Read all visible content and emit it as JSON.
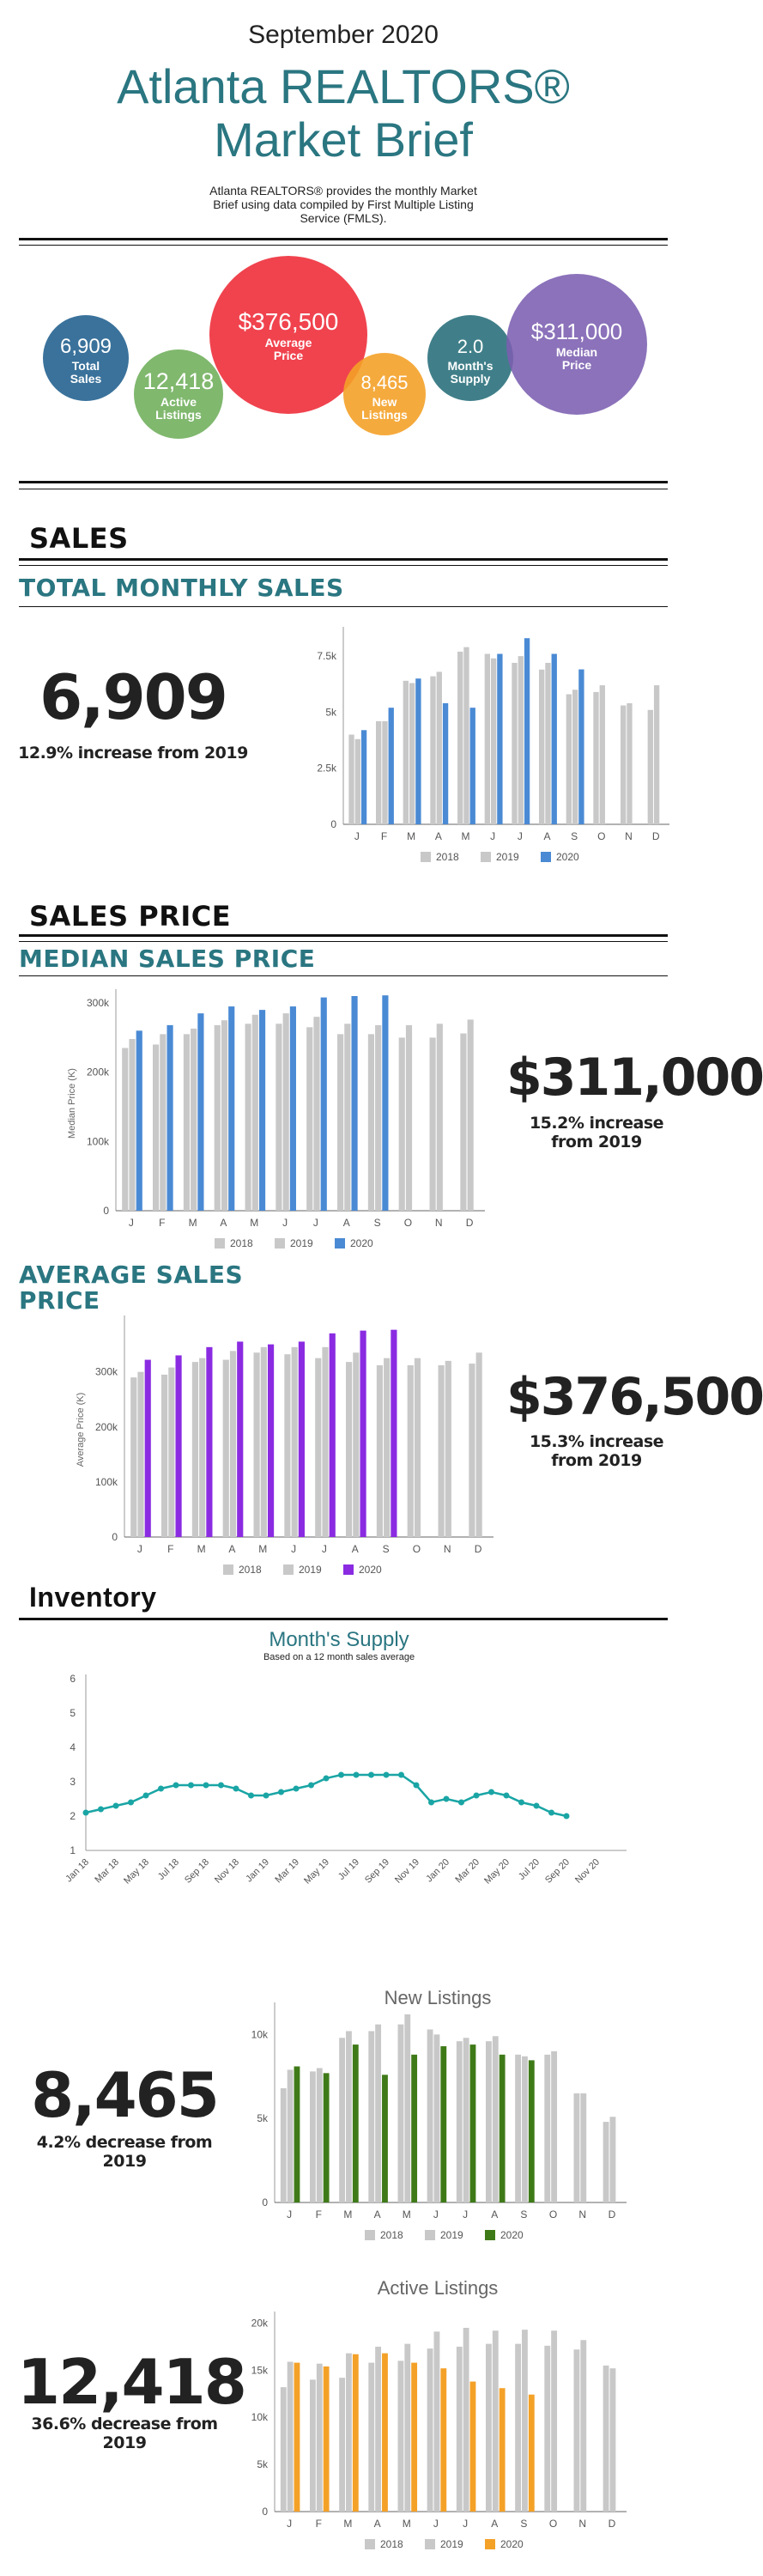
{
  "header": {
    "date": "September 2020",
    "title_line1": "Atlanta REALTORS®",
    "title_line2": "Market Brief",
    "description": "Atlanta REALTORS® provides the monthly Market Brief using data compiled by First Multiple Listing Service (FMLS)."
  },
  "bubbles": [
    {
      "value": "6,909",
      "label": "Total Sales",
      "color": "#2f6a96"
    },
    {
      "value": "12,418",
      "label": "Active Listings",
      "color": "#6aab55"
    },
    {
      "value": "$376,500",
      "label": "Average Price",
      "color": "#ee2f3b"
    },
    {
      "value": "8,465",
      "label": "New Listings",
      "color": "#f4a128"
    },
    {
      "value": "2.0",
      "label": "Month's Supply",
      "color": "#266d79"
    },
    {
      "value": "$311,000",
      "label": "Median Price",
      "color": "#7b5fb0"
    }
  ],
  "sections": {
    "sales": "SALES",
    "sales_price": "SALES PRICE",
    "inventory": "Inventory"
  },
  "total_sales": {
    "subtitle": "TOTAL MONTHLY SALES",
    "big": "6,909",
    "change": "12.9% increase from 2019"
  },
  "median_price": {
    "subtitle": "MEDIAN SALES PRICE",
    "big": "$311,000",
    "change": "15.2% increase from 2019"
  },
  "average_price": {
    "subtitle_line1": "AVERAGE SALES",
    "subtitle_line2": "PRICE",
    "big": "$376,500",
    "change": "15.3% increase from 2019"
  },
  "months_supply": {
    "title": "Month's Supply",
    "subtitle": "Based on a 12 month sales average"
  },
  "new_listings": {
    "title": "New Listings",
    "big": "8,465",
    "change": "4.2% decrease from 2019"
  },
  "active_listings": {
    "title": "Active Listings",
    "big": "12,418",
    "change": "36.6% decrease from 2019"
  },
  "chart_data": [
    {
      "id": "sales",
      "type": "bar",
      "categories": [
        "J",
        "F",
        "M",
        "A",
        "M",
        "J",
        "J",
        "A",
        "S",
        "O",
        "N",
        "D"
      ],
      "ylim": [
        0,
        8500
      ],
      "yticks": [
        0,
        2500,
        5000,
        7500
      ],
      "yticklabels": [
        "0",
        "2.5k",
        "5k",
        "7.5k"
      ],
      "ylabel": "",
      "series": [
        {
          "name": "2018",
          "color": "#c8c8c8",
          "values": [
            4000,
            4600,
            6400,
            6600,
            7700,
            7600,
            7200,
            6900,
            5800,
            5900,
            5300,
            5100
          ]
        },
        {
          "name": "2019",
          "color": "#c8c8c8",
          "values": [
            3800,
            4600,
            6300,
            6800,
            7900,
            7400,
            7500,
            7200,
            6000,
            6200,
            5400,
            6200
          ]
        },
        {
          "name": "2020",
          "color": "#4a8ad4",
          "values": [
            4200,
            5200,
            6500,
            5400,
            5200,
            7600,
            8300,
            7600,
            6909,
            null,
            null,
            null
          ]
        }
      ]
    },
    {
      "id": "median",
      "type": "bar",
      "categories": [
        "J",
        "F",
        "M",
        "A",
        "M",
        "J",
        "J",
        "A",
        "S",
        "O",
        "N",
        "D"
      ],
      "ylim": [
        0,
        310000
      ],
      "yticks": [
        0,
        100000,
        200000,
        300000
      ],
      "yticklabels": [
        "0",
        "100k",
        "200k",
        "300k"
      ],
      "ylabel": "Median Price (K)",
      "series": [
        {
          "name": "2018",
          "color": "#c8c8c8",
          "values": [
            235000,
            240000,
            255000,
            268000,
            270000,
            270000,
            265000,
            255000,
            255000,
            250000,
            250000,
            256000
          ]
        },
        {
          "name": "2019",
          "color": "#c8c8c8",
          "values": [
            248000,
            255000,
            263000,
            275000,
            283000,
            285000,
            280000,
            270000,
            268000,
            268000,
            270000,
            276000
          ]
        },
        {
          "name": "2020",
          "color": "#4a8ad4",
          "values": [
            260000,
            268000,
            285000,
            295000,
            290000,
            295000,
            308000,
            310000,
            311000,
            null,
            null,
            null
          ]
        }
      ]
    },
    {
      "id": "average",
      "type": "bar",
      "categories": [
        "J",
        "F",
        "M",
        "A",
        "M",
        "J",
        "J",
        "A",
        "S",
        "O",
        "N",
        "D"
      ],
      "ylim": [
        0,
        390000
      ],
      "yticks": [
        0,
        100000,
        200000,
        300000
      ],
      "yticklabels": [
        "0",
        "100k",
        "200k",
        "300k"
      ],
      "ylabel": "Average Price (K)",
      "series": [
        {
          "name": "2018",
          "color": "#c8c8c8",
          "values": [
            290000,
            295000,
            318000,
            322000,
            335000,
            332000,
            325000,
            318000,
            312000,
            312000,
            312000,
            315000
          ]
        },
        {
          "name": "2019",
          "color": "#c8c8c8",
          "values": [
            300000,
            308000,
            325000,
            338000,
            345000,
            345000,
            345000,
            335000,
            325000,
            325000,
            320000,
            335000
          ]
        },
        {
          "name": "2020",
          "color": "#8a2be2",
          "values": [
            322000,
            330000,
            345000,
            355000,
            350000,
            355000,
            370000,
            375000,
            376500,
            null,
            null,
            null
          ]
        }
      ]
    },
    {
      "id": "supply",
      "type": "line",
      "color": "#1aa5a5",
      "x": [
        "Jan 18",
        "Feb 18",
        "Mar 18",
        "Apr 18",
        "May 18",
        "Jun 18",
        "Jul 18",
        "Aug 18",
        "Sep 18",
        "Oct 18",
        "Nov 18",
        "Dec 18",
        "Jan 19",
        "Feb 19",
        "Mar 19",
        "Apr 19",
        "May 19",
        "Jun 19",
        "Jul 19",
        "Aug 19",
        "Sep 19",
        "Oct 19",
        "Nov 19",
        "Dec 19",
        "Jan 20",
        "Feb 20",
        "Mar 20",
        "Apr 20",
        "May 20",
        "Jun 20",
        "Jul 20",
        "Aug 20",
        "Sep 20"
      ],
      "xticklabels": [
        "Jan 18",
        "Mar 18",
        "May 18",
        "Jul 18",
        "Sep 18",
        "Nov 18",
        "Jan 19",
        "Mar 19",
        "May 19",
        "Jul 19",
        "Sep 19",
        "Nov 19",
        "Jan 20",
        "Mar 20",
        "May 20",
        "Jul 20",
        "Sep 20",
        "Nov 20"
      ],
      "values": [
        2.1,
        2.2,
        2.3,
        2.4,
        2.6,
        2.8,
        2.9,
        2.9,
        2.9,
        2.9,
        2.8,
        2.6,
        2.6,
        2.7,
        2.8,
        2.9,
        3.1,
        3.2,
        3.2,
        3.2,
        3.2,
        3.2,
        2.9,
        2.4,
        2.5,
        2.4,
        2.6,
        2.7,
        2.6,
        2.4,
        2.3,
        2.1,
        2.0
      ],
      "ylim": [
        1,
        6
      ],
      "yticks": [
        1,
        2,
        3,
        4,
        5,
        6
      ]
    },
    {
      "id": "new",
      "type": "bar",
      "categories": [
        "J",
        "F",
        "M",
        "A",
        "M",
        "J",
        "J",
        "A",
        "S",
        "O",
        "N",
        "D"
      ],
      "ylim": [
        0,
        11500
      ],
      "yticks": [
        0,
        5000,
        10000
      ],
      "yticklabels": [
        "0",
        "5k",
        "10k"
      ],
      "ylabel": "",
      "series": [
        {
          "name": "2018",
          "color": "#c8c8c8",
          "values": [
            6800,
            7800,
            9800,
            10200,
            10600,
            10300,
            9600,
            9600,
            8800,
            8800,
            6500,
            4800
          ]
        },
        {
          "name": "2019",
          "color": "#c8c8c8",
          "values": [
            7900,
            8000,
            10200,
            10600,
            11200,
            10000,
            9800,
            9900,
            8700,
            9000,
            6500,
            5100
          ]
        },
        {
          "name": "2020",
          "color": "#3f7a18",
          "values": [
            8100,
            7700,
            9400,
            7600,
            8800,
            9300,
            9400,
            8800,
            8465,
            null,
            null,
            null
          ]
        }
      ]
    },
    {
      "id": "active",
      "type": "bar",
      "categories": [
        "J",
        "F",
        "M",
        "A",
        "M",
        "J",
        "J",
        "A",
        "S",
        "O",
        "N",
        "D"
      ],
      "ylim": [
        0,
        20500
      ],
      "yticks": [
        0,
        5000,
        10000,
        15000,
        20000
      ],
      "yticklabels": [
        "0",
        "5k",
        "10k",
        "15k",
        "20k"
      ],
      "ylabel": "",
      "series": [
        {
          "name": "2018",
          "color": "#c8c8c8",
          "values": [
            13200,
            14000,
            14200,
            15800,
            16000,
            17300,
            17500,
            17800,
            17800,
            17600,
            17200,
            15500
          ]
        },
        {
          "name": "2019",
          "color": "#c8c8c8",
          "values": [
            15900,
            15700,
            16800,
            17500,
            17800,
            19100,
            19500,
            19200,
            19300,
            19200,
            18200,
            15200
          ]
        },
        {
          "name": "2020",
          "color": "#f4a128",
          "values": [
            15800,
            15400,
            16700,
            16800,
            15800,
            15200,
            13800,
            13100,
            12418,
            null,
            null,
            null
          ]
        }
      ]
    }
  ],
  "legend": [
    "2018",
    "2019",
    "2020"
  ]
}
